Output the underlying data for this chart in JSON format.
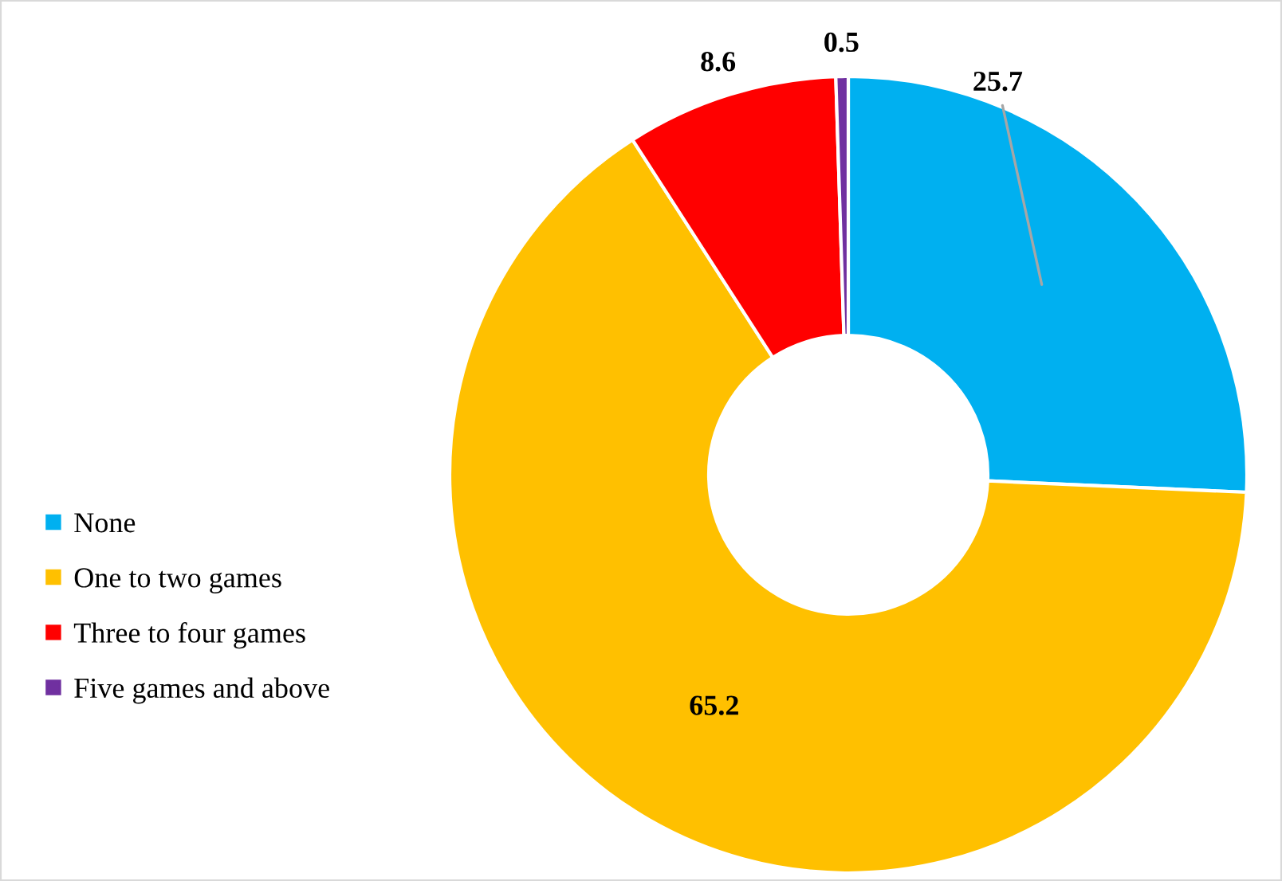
{
  "chart_data": {
    "type": "donut",
    "categories": [
      "None",
      "One to two games",
      "Three to four games",
      "Five games and above"
    ],
    "values": [
      25.7,
      65.2,
      8.6,
      0.5
    ],
    "colors": [
      "#00b0f0",
      "#ffc000",
      "#ff0000",
      "#7030a0"
    ],
    "data_labels": true,
    "legend": "left"
  }
}
